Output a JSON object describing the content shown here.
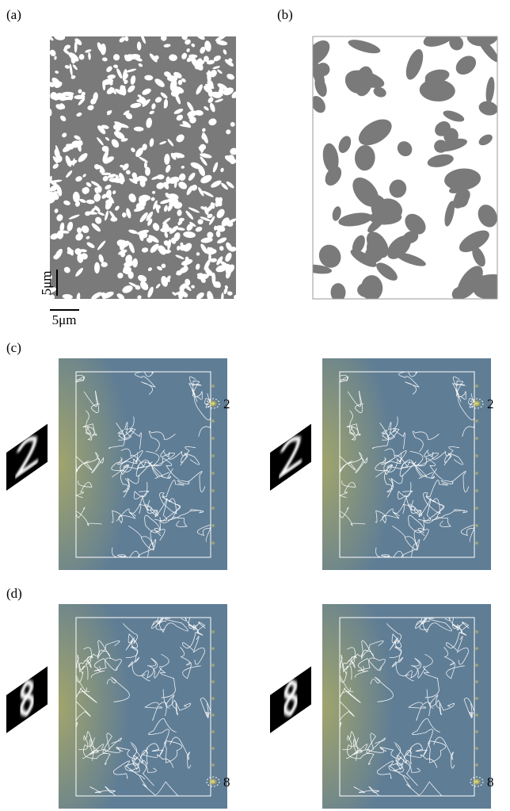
{
  "panels": {
    "a": {
      "label": "(a)",
      "scale_vertical": "5μm",
      "scale_horizontal": "5μm"
    },
    "b": {
      "label": "(b)"
    },
    "c": {
      "label": "(c)",
      "outputs": [
        "2",
        "2"
      ]
    },
    "d": {
      "label": "(d)",
      "outputs": [
        "8",
        "8"
      ]
    }
  }
}
